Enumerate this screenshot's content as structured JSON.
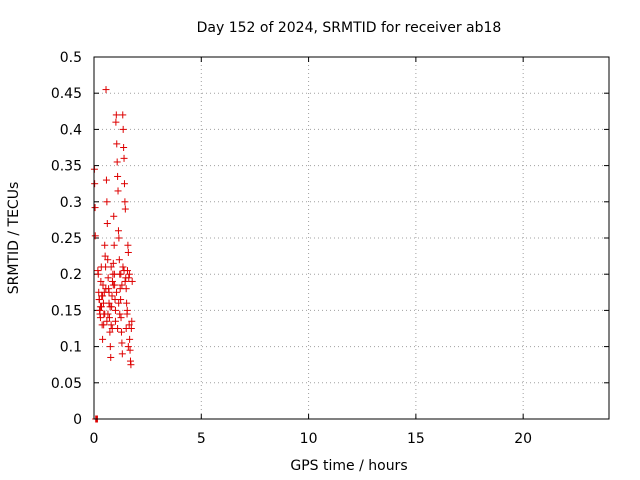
{
  "chart_data": {
    "type": "scatter",
    "title": "Day 152 of 2024, SRMTID for receiver ab18",
    "xlabel": "GPS time / hours",
    "ylabel": "SRMTID / TECUs",
    "xlim": [
      0,
      24
    ],
    "ylim": [
      0,
      0.5
    ],
    "grid": true,
    "marker": "+",
    "marker_color": "#dd0000",
    "x_ticks": [
      0,
      5,
      10,
      15,
      20
    ],
    "x_tick_labels": [
      "0",
      "5",
      "10",
      "15",
      "20"
    ],
    "y_ticks": [
      0,
      0.05,
      0.1,
      0.15,
      0.2,
      0.25,
      0.3,
      0.35,
      0.4,
      0.45,
      0.5
    ],
    "y_tick_labels": [
      "0",
      "0.05",
      "0.1",
      "0.15",
      "0.2",
      "0.25",
      "0.3",
      "0.35",
      "0.4",
      "0.45",
      "0.5"
    ],
    "points": [
      [
        0.02,
        0.345
      ],
      [
        0.03,
        0.325
      ],
      [
        0.05,
        0.292
      ],
      [
        0.06,
        0.253
      ],
      [
        0.08,
        0.0
      ],
      [
        0.1,
        0.0
      ],
      [
        0.12,
        0.0
      ],
      [
        0.14,
        0.0
      ],
      [
        0.16,
        0.0
      ],
      [
        0.18,
        0.205
      ],
      [
        0.2,
        0.2
      ],
      [
        0.22,
        0.175
      ],
      [
        0.24,
        0.165
      ],
      [
        0.26,
        0.15
      ],
      [
        0.28,
        0.145
      ],
      [
        0.3,
        0.14
      ],
      [
        0.32,
        0.19
      ],
      [
        0.34,
        0.21
      ],
      [
        0.36,
        0.17
      ],
      [
        0.38,
        0.13
      ],
      [
        0.4,
        0.11
      ],
      [
        0.42,
        0.185
      ],
      [
        0.44,
        0.16
      ],
      [
        0.46,
        0.145
      ],
      [
        0.48,
        0.175
      ],
      [
        0.5,
        0.24
      ],
      [
        0.52,
        0.225
      ],
      [
        0.54,
        0.21
      ],
      [
        0.56,
        0.455
      ],
      [
        0.58,
        0.33
      ],
      [
        0.6,
        0.3
      ],
      [
        0.62,
        0.27
      ],
      [
        0.64,
        0.22
      ],
      [
        0.66,
        0.195
      ],
      [
        0.68,
        0.18
      ],
      [
        0.7,
        0.16
      ],
      [
        0.72,
        0.14
      ],
      [
        0.74,
        0.12
      ],
      [
        0.76,
        0.1
      ],
      [
        0.78,
        0.085
      ],
      [
        0.8,
        0.13
      ],
      [
        0.82,
        0.155
      ],
      [
        0.84,
        0.17
      ],
      [
        0.86,
        0.19
      ],
      [
        0.88,
        0.2
      ],
      [
        0.9,
        0.215
      ],
      [
        0.92,
        0.28
      ],
      [
        0.94,
        0.24
      ],
      [
        0.96,
        0.185
      ],
      [
        0.98,
        0.165
      ],
      [
        1.0,
        0.15
      ],
      [
        1.02,
        0.41
      ],
      [
        1.04,
        0.42
      ],
      [
        1.06,
        0.38
      ],
      [
        1.08,
        0.355
      ],
      [
        1.1,
        0.335
      ],
      [
        1.12,
        0.315
      ],
      [
        1.14,
        0.26
      ],
      [
        1.16,
        0.25
      ],
      [
        1.18,
        0.22
      ],
      [
        1.2,
        0.2
      ],
      [
        1.22,
        0.18
      ],
      [
        1.24,
        0.165
      ],
      [
        1.26,
        0.14
      ],
      [
        1.28,
        0.12
      ],
      [
        1.3,
        0.105
      ],
      [
        1.32,
        0.09
      ],
      [
        1.34,
        0.42
      ],
      [
        1.36,
        0.4
      ],
      [
        1.38,
        0.375
      ],
      [
        1.4,
        0.36
      ],
      [
        1.42,
        0.325
      ],
      [
        1.44,
        0.3
      ],
      [
        1.46,
        0.29
      ],
      [
        1.48,
        0.195
      ],
      [
        1.5,
        0.18
      ],
      [
        1.52,
        0.16
      ],
      [
        1.54,
        0.145
      ],
      [
        1.56,
        0.205
      ],
      [
        1.58,
        0.24
      ],
      [
        1.6,
        0.23
      ],
      [
        1.62,
        0.195
      ],
      [
        1.64,
        0.13
      ],
      [
        1.66,
        0.11
      ],
      [
        1.68,
        0.095
      ],
      [
        1.7,
        0.08
      ],
      [
        1.72,
        0.075
      ],
      [
        1.74,
        0.125
      ],
      [
        1.76,
        0.135
      ],
      [
        1.78,
        0.19
      ],
      [
        0.25,
        0.165
      ],
      [
        0.35,
        0.155
      ],
      [
        0.45,
        0.13
      ],
      [
        0.55,
        0.18
      ],
      [
        0.65,
        0.145
      ],
      [
        0.75,
        0.155
      ],
      [
        0.85,
        0.125
      ],
      [
        0.95,
        0.2
      ],
      [
        1.05,
        0.175
      ],
      [
        1.15,
        0.16
      ],
      [
        1.25,
        0.2
      ],
      [
        1.35,
        0.21
      ],
      [
        1.45,
        0.19
      ],
      [
        1.55,
        0.15
      ],
      [
        1.65,
        0.2
      ],
      [
        0.3,
        0.155
      ],
      [
        0.4,
        0.17
      ],
      [
        0.5,
        0.145
      ],
      [
        0.6,
        0.135
      ],
      [
        0.7,
        0.175
      ],
      [
        0.8,
        0.21
      ],
      [
        0.9,
        0.185
      ],
      [
        1.0,
        0.135
      ],
      [
        1.1,
        0.125
      ],
      [
        1.2,
        0.145
      ],
      [
        1.3,
        0.185
      ],
      [
        1.4,
        0.205
      ],
      [
        1.5,
        0.125
      ],
      [
        1.6,
        0.1
      ]
    ]
  }
}
